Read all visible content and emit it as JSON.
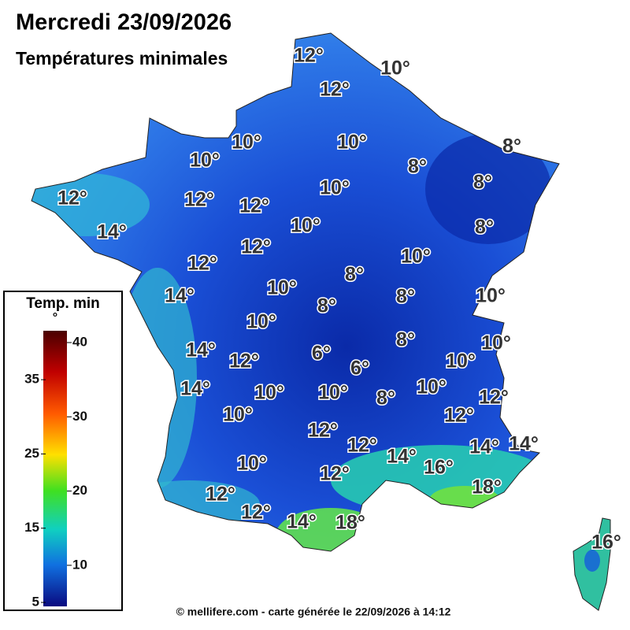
{
  "header": {
    "title": "Mercredi 23/09/2026",
    "subtitle": "Températures minimales"
  },
  "labels": [
    "12°",
    "10°",
    "12°",
    "10°",
    "10°",
    "10°",
    "8°",
    "8°",
    "8°",
    "12°",
    "12°",
    "10°",
    "12°",
    "14°",
    "10°",
    "8°",
    "12°",
    "12°",
    "10°",
    "8°",
    "10°",
    "14°",
    "8°",
    "8°",
    "10°",
    "10°",
    "8°",
    "10°",
    "14°",
    "6°",
    "6°",
    "10°",
    "12°",
    "14°",
    "10°",
    "10°",
    "8°",
    "10°",
    "12°",
    "12°",
    "10°",
    "12°",
    "12°",
    "14°",
    "16°",
    "14°",
    "14°",
    "10°",
    "12°",
    "18°",
    "12°",
    "12°",
    "14°",
    "18°",
    "16°"
  ],
  "legend": {
    "title": "Temp. min",
    "unit": "°",
    "ticks": [
      5,
      10,
      15,
      20,
      25,
      30,
      35,
      40
    ]
  },
  "footer": "© mellifere.com - carte générée le 22/09/2026 à 14:12"
}
